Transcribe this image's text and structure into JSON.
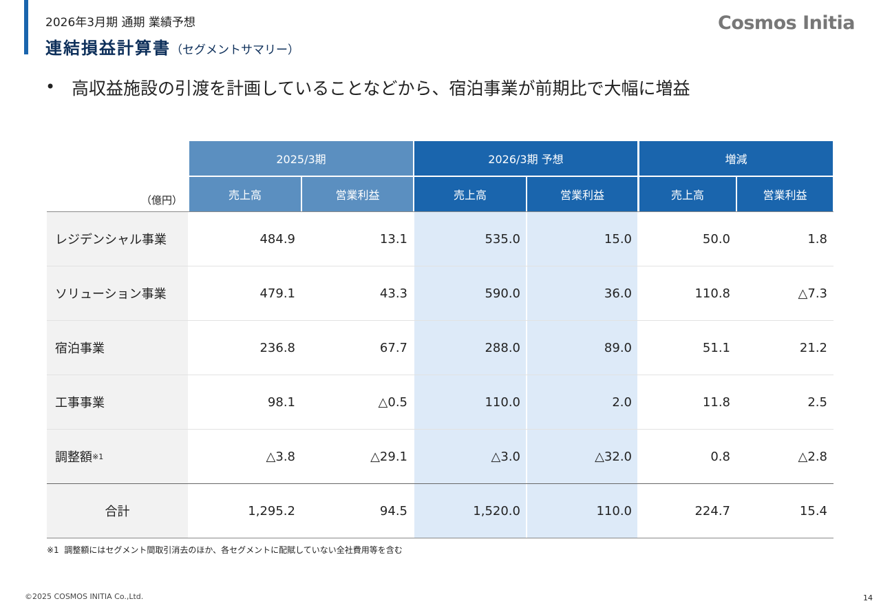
{
  "header": {
    "period": "2026年3月期 通期 業績予想",
    "title": "連結損益計算書",
    "subtitle": "（セグメントサマリー）",
    "logo": "Cosmos Initia"
  },
  "bullets": [
    "高収益施設の引渡を計画していることなどから、宿泊事業が前期比で大幅に増益"
  ],
  "table": {
    "unit": "（億円）",
    "groups": [
      "2025/3期",
      "2026/3期 予想",
      "増減"
    ],
    "columns": [
      "売上高",
      "営業利益",
      "売上高",
      "営業利益",
      "売上高",
      "営業利益"
    ],
    "rows": [
      {
        "label": "レジデンシャル事業",
        "values": [
          "484.9",
          "13.1",
          "535.0",
          "15.0",
          "50.0",
          "1.8"
        ]
      },
      {
        "label": "ソリューション事業",
        "values": [
          "479.1",
          "43.3",
          "590.0",
          "36.0",
          "110.8",
          "△7.3"
        ]
      },
      {
        "label": "宿泊事業",
        "values": [
          "236.8",
          "67.7",
          "288.0",
          "89.0",
          "51.1",
          "21.2"
        ]
      },
      {
        "label": "工事事業",
        "values": [
          "98.1",
          "△0.5",
          "110.0",
          "2.0",
          "11.8",
          "2.5"
        ]
      },
      {
        "label": "調整額",
        "note": "※1",
        "values": [
          "△3.8",
          "△29.1",
          "△3.0",
          "△32.0",
          "0.8",
          "△2.8"
        ]
      }
    ],
    "total": {
      "label": "合計",
      "values": [
        "1,295.2",
        "94.5",
        "1,520.0",
        "110.0",
        "224.7",
        "15.4"
      ]
    }
  },
  "footnote": {
    "mark": "※1",
    "text": "調整額にはセグメント間取引消去のほか、各セグメントに配賦していない全社費用等を含む"
  },
  "footer": {
    "copyright": "©2025 COSMOS INITIA Co.,Ltd.",
    "page": "14"
  }
}
